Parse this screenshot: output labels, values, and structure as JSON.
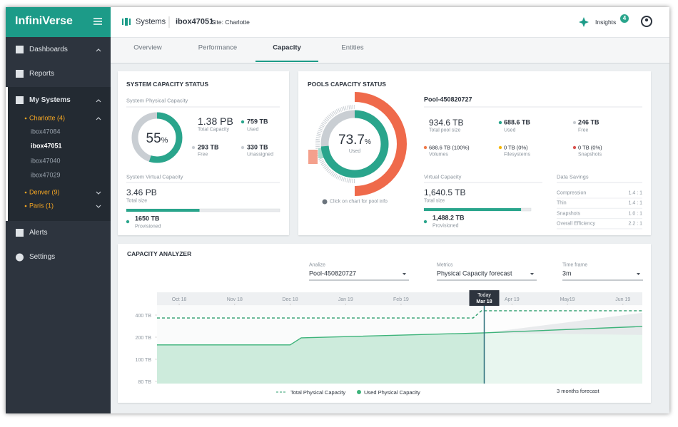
{
  "sidebar": {
    "brand": "InfiniVerse",
    "nav": {
      "dashboards": "Dashboards",
      "reports": "Reports",
      "my_systems": "My Systems",
      "alerts": "Alerts",
      "settings": "Settings"
    },
    "sites": [
      {
        "name": "Charlotte (4)",
        "systems": [
          "ibox47084",
          "ibox47051",
          "ibox47040",
          "ibox47029"
        ]
      },
      {
        "name": "Denver (9)"
      },
      {
        "name": "Paris (1)"
      }
    ]
  },
  "header": {
    "section": "Systems",
    "system": "ibox47051",
    "site": "Site: Charlotte",
    "insights": "Insights",
    "insights_count": "4"
  },
  "tabs": [
    "Overview",
    "Performance",
    "Capacity",
    "Entities"
  ],
  "active_tab": 2,
  "system_capacity": {
    "title": "SYSTEM CAPACITY STATUS",
    "physical_title": "System Physical Capacity",
    "used_percent": 55,
    "percent_sign": "%",
    "total": "1.38 PB",
    "total_label": "Total Capacity",
    "used": "759 TB",
    "used_label": "Used",
    "free": "293 TB",
    "free_label": "Free",
    "unassigned": "330 TB",
    "unassigned_label": "Unassigned",
    "virtual_title": "System Virtual Capacity",
    "virtual_total": "3.46 PB",
    "virtual_total_label": "Total size",
    "provisioned": "1650 TB",
    "provisioned_label": "Provisioned",
    "virtual_bar": {
      "provisioned": 1650,
      "total": 3460
    }
  },
  "pools_capacity": {
    "title": "POOLS CAPACITY STATUS",
    "used_percent": 73.7,
    "percent_sign": "%",
    "used_caption": "Used",
    "hint": "Click on chart for pool info",
    "pool_name": "Pool-450820727",
    "total": "934.6 TB",
    "total_label": "Total pool size",
    "used": "688.6 TB",
    "used_label": "Used",
    "free": "246 TB",
    "free_label": "Free",
    "volumes": "688.6 TB (100%)",
    "volumes_label": "Volumes",
    "filesystems": "0 TB (0%)",
    "filesystems_label": "Filesystems",
    "snapshots": "0 TB (0%)",
    "snapshots_label": "Snapshots",
    "virtual_title": "Virtual Capacity",
    "virtual_total": "1,640.5 TB",
    "virtual_total_label": "Total size",
    "provisioned": "1,488.2 TB",
    "provisioned_label": "Provisioned",
    "virtual_bar": {
      "provisioned": 1488.2,
      "total": 1640.5
    },
    "savings_title": "Data Savings",
    "savings": [
      {
        "label": "Compression",
        "value": "1.4 : 1"
      },
      {
        "label": "Thin",
        "value": "1.4 : 1"
      },
      {
        "label": "Snapshots",
        "value": "1.0 : 1"
      },
      {
        "label": "Overall Efficiency",
        "value": "2.2 : 1"
      }
    ]
  },
  "capacity_analyzer": {
    "title": "CAPACITY ANALYZER",
    "filters": [
      {
        "label": "Analize",
        "value": "Pool-450820727"
      },
      {
        "label": "Metrics",
        "value": "Physical Capacity forecast"
      },
      {
        "label": "Time frame",
        "value": "3m"
      }
    ],
    "chart": {
      "type": "line",
      "xlim": [
        -0.4,
        8.35
      ],
      "ylim": [
        78,
        606
      ],
      "xticks": [
        {
          "value": 0,
          "label": "Oct 18"
        },
        {
          "value": 1,
          "label": "Nov 18"
        },
        {
          "value": 2,
          "label": "Dec 18"
        },
        {
          "value": 3,
          "label": "Jan 19"
        },
        {
          "value": 4,
          "label": "Feb 19"
        },
        {
          "value": 6,
          "label": "Apr 19"
        },
        {
          "value": 7,
          "label": "May19"
        },
        {
          "value": 8,
          "label": "Jun 19"
        }
      ],
      "yticks": [
        {
          "value": 400,
          "label": "400 TB"
        },
        {
          "value": 200,
          "label": "200 TB"
        },
        {
          "value": 100,
          "label": "100 TB"
        },
        {
          "value": 80,
          "label": "80 TB"
        }
      ],
      "today": {
        "x": 5.5,
        "label": "Today",
        "date": "Mar 18"
      },
      "forecast_label": "3 months forecast",
      "series": [
        {
          "name": "Total Physical Capacity",
          "color": "#2e9e6e",
          "style": "dashed",
          "x": [
            -0.4,
            5.3,
            5.45,
            8.35
          ],
          "values": [
            374,
            374,
            439,
            439
          ]
        },
        {
          "name": "Used Physical Capacity",
          "color": "#3db37a",
          "style": "solid",
          "x": [
            -0.4,
            2.0,
            2.2,
            5.5,
            8.35
          ],
          "values": [
            165,
            165,
            197,
            239,
            297
          ]
        }
      ]
    }
  }
}
